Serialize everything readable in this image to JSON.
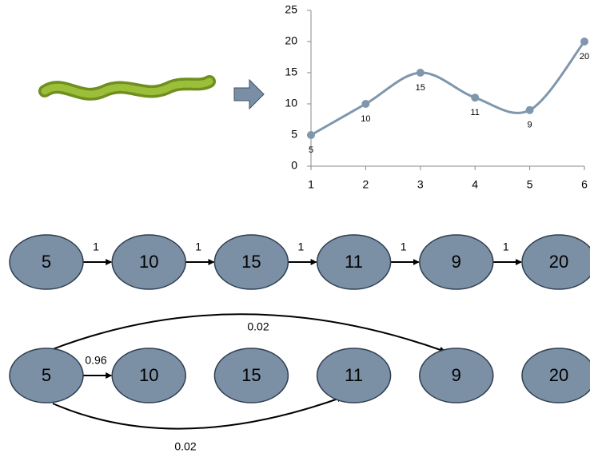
{
  "chart_data": {
    "type": "line",
    "x": [
      1,
      2,
      3,
      4,
      5,
      6
    ],
    "values": [
      5,
      10,
      15,
      11,
      9,
      20
    ],
    "color": "#7f96ad",
    "xlim": [
      1,
      6
    ],
    "xticks": [
      1,
      2,
      3,
      4,
      5,
      6
    ],
    "ylim": [
      0,
      25
    ],
    "yticks": [
      0,
      5,
      10,
      15,
      20,
      25
    ],
    "smooth": true,
    "data_labels": true
  },
  "chain_graph": {
    "nodes": [
      {
        "label": "5"
      },
      {
        "label": "10"
      },
      {
        "label": "15"
      },
      {
        "label": "11"
      },
      {
        "label": "9"
      },
      {
        "label": "20"
      }
    ],
    "edges": [
      {
        "from": 0,
        "to": 1,
        "label": "1"
      },
      {
        "from": 1,
        "to": 2,
        "label": "1"
      },
      {
        "from": 2,
        "to": 3,
        "label": "1"
      },
      {
        "from": 3,
        "to": 4,
        "label": "1"
      },
      {
        "from": 4,
        "to": 5,
        "label": "1"
      }
    ]
  },
  "transition_graph": {
    "nodes": [
      {
        "label": "5"
      },
      {
        "label": "10"
      },
      {
        "label": "15"
      },
      {
        "label": "11"
      },
      {
        "label": "9"
      },
      {
        "label": "20"
      }
    ],
    "edges": [
      {
        "from": 0,
        "to": 1,
        "label": "0.96"
      },
      {
        "from": 0,
        "to": 4,
        "label": "0.02"
      },
      {
        "from": 0,
        "to": 3,
        "label": "0.02"
      }
    ]
  }
}
